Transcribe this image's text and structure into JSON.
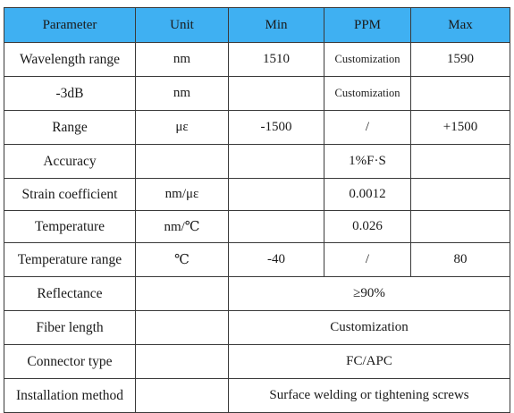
{
  "table": {
    "headers": [
      "Parameter",
      "Unit",
      "Min",
      "PPM",
      "Max"
    ],
    "rows": [
      {
        "parameter": "Wavelength range",
        "unit": "nm",
        "min": "1510",
        "ppm": "Customization",
        "max": "1590"
      },
      {
        "parameter": "-3dB",
        "unit": "nm",
        "min": "",
        "ppm": "Customization",
        "max": ""
      },
      {
        "parameter": "Range",
        "unit": "με",
        "min": "-1500",
        "ppm": "/",
        "max": "+1500"
      },
      {
        "parameter": "Accuracy",
        "unit": "",
        "min": "",
        "ppm": "1%F·S",
        "max": ""
      },
      {
        "parameter": "Strain coefficient",
        "unit": "nm/με",
        "min": "",
        "ppm": "0.0012",
        "max": ""
      },
      {
        "parameter": "Temperature",
        "unit": "nm/℃",
        "min": "",
        "ppm": "0.026",
        "max": ""
      },
      {
        "parameter": "Temperature range",
        "unit": "℃",
        "min": "-40",
        "ppm": "/",
        "max": "80"
      },
      {
        "parameter": "Reflectance",
        "unit": "",
        "merged": "≥90%"
      },
      {
        "parameter": "Fiber length",
        "unit": "",
        "merged": "Customization"
      },
      {
        "parameter": "Connector type",
        "unit": "",
        "merged": "FC/APC"
      },
      {
        "parameter": "Installation method",
        "unit": "",
        "merged": "Surface welding or tightening screws"
      }
    ]
  },
  "colors": {
    "header_background": "#3fb0f2",
    "border": "#3a3a3a",
    "text": "#1a1a1a"
  }
}
